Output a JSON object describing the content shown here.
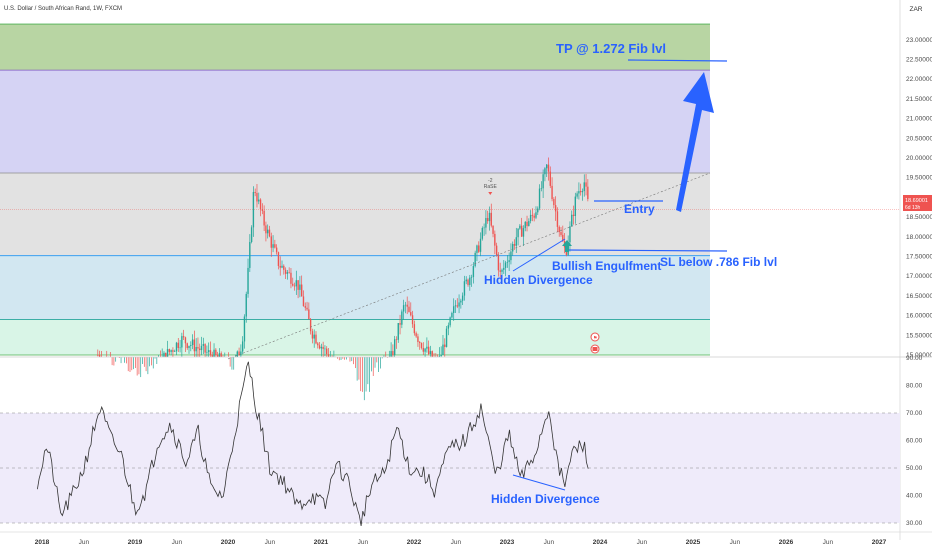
{
  "header": {
    "symbol_title": "U.S. Dollar / South African Rand, 1W, FXCM"
  },
  "currency_label": "ZAR",
  "colors": {
    "up": "#26a69a",
    "down": "#ef5350",
    "annotation": "#2962ff",
    "fib_green": "#b8d5a3",
    "fib_purple": "#d5d3f4",
    "fib_gray": "#e2e2e2",
    "fib_blue": "#d2e7f1",
    "fib_mint": "#d9f5e7",
    "rsi_band": "#efebfa",
    "price_badge": "#ef5350",
    "arrow": "#2962ff"
  },
  "chart_data": [
    {
      "type": "candlestick",
      "title": "U.S. Dollar / South African Rand, 1W, FXCM",
      "ylim": [
        14.75,
        23.4
      ],
      "y_ticks": [
        "15.00000",
        "15.50000",
        "16.00000",
        "16.50000",
        "17.00000",
        "17.50000",
        "18.00000",
        "18.50000",
        "19.00000",
        "19.50000",
        "20.00000",
        "20.50000",
        "21.00000",
        "21.50000",
        "22.00000",
        "22.50000",
        "23.00000"
      ],
      "current_price": {
        "value": "18.69001",
        "countdown": "6d 13h"
      },
      "fib_levels": [
        15.0,
        15.9,
        17.52,
        19.62,
        22.23,
        23.4
      ],
      "anchors": [
        {
          "year": 2018.6,
          "value": 15.0
        },
        {
          "year": 2019.05,
          "value": 14.3
        },
        {
          "year": 2019.5,
          "value": 15.4
        },
        {
          "year": 2019.9,
          "value": 14.9
        },
        {
          "year": 2020.05,
          "value": 14.6
        },
        {
          "year": 2020.15,
          "value": 15.3
        },
        {
          "year": 2020.22,
          "value": 17.2
        },
        {
          "year": 2020.28,
          "value": 19.3
        },
        {
          "year": 2020.38,
          "value": 18.4
        },
        {
          "year": 2020.55,
          "value": 17.3
        },
        {
          "year": 2020.75,
          "value": 16.8
        },
        {
          "year": 2020.9,
          "value": 15.6
        },
        {
          "year": 2021.1,
          "value": 14.9
        },
        {
          "year": 2021.35,
          "value": 14.5
        },
        {
          "year": 2021.45,
          "value": 13.8
        },
        {
          "year": 2021.6,
          "value": 14.6
        },
        {
          "year": 2021.75,
          "value": 14.9
        },
        {
          "year": 2021.9,
          "value": 16.3
        },
        {
          "year": 2022.05,
          "value": 15.4
        },
        {
          "year": 2022.25,
          "value": 14.7
        },
        {
          "year": 2022.45,
          "value": 16.3
        },
        {
          "year": 2022.6,
          "value": 17.0
        },
        {
          "year": 2022.8,
          "value": 18.6
        },
        {
          "year": 2022.93,
          "value": 17.0
        },
        {
          "year": 2023.1,
          "value": 18.0
        },
        {
          "year": 2023.3,
          "value": 18.6
        },
        {
          "year": 2023.43,
          "value": 19.8
        },
        {
          "year": 2023.5,
          "value": 18.9
        },
        {
          "year": 2023.58,
          "value": 18.0
        },
        {
          "year": 2023.63,
          "value": 17.6
        },
        {
          "year": 2023.75,
          "value": 19.1
        },
        {
          "year": 2023.83,
          "value": 19.4
        },
        {
          "year": 2023.88,
          "value": 18.7
        }
      ]
    },
    {
      "type": "line",
      "name": "RSI",
      "ylim": [
        28,
        91
      ],
      "y_ticks": [
        "30.00",
        "40.00",
        "50.00",
        "60.00",
        "70.00",
        "80.00",
        "90.00"
      ],
      "band": [
        30,
        70
      ],
      "anchors": [
        {
          "year": 2017.95,
          "value": 45
        },
        {
          "year": 2018.05,
          "value": 58
        },
        {
          "year": 2018.12,
          "value": 48
        },
        {
          "year": 2018.2,
          "value": 33
        },
        {
          "year": 2018.3,
          "value": 38
        },
        {
          "year": 2018.45,
          "value": 50
        },
        {
          "year": 2018.62,
          "value": 72
        },
        {
          "year": 2018.75,
          "value": 60
        },
        {
          "year": 2018.85,
          "value": 55
        },
        {
          "year": 2019.0,
          "value": 35
        },
        {
          "year": 2019.12,
          "value": 42
        },
        {
          "year": 2019.25,
          "value": 60
        },
        {
          "year": 2019.38,
          "value": 66
        },
        {
          "year": 2019.55,
          "value": 52
        },
        {
          "year": 2019.68,
          "value": 63
        },
        {
          "year": 2019.82,
          "value": 42
        },
        {
          "year": 2019.95,
          "value": 40
        },
        {
          "year": 2020.1,
          "value": 68
        },
        {
          "year": 2020.22,
          "value": 88
        },
        {
          "year": 2020.3,
          "value": 73
        },
        {
          "year": 2020.45,
          "value": 50
        },
        {
          "year": 2020.6,
          "value": 45
        },
        {
          "year": 2020.75,
          "value": 36
        },
        {
          "year": 2020.9,
          "value": 40
        },
        {
          "year": 2021.05,
          "value": 36
        },
        {
          "year": 2021.15,
          "value": 52
        },
        {
          "year": 2021.3,
          "value": 45
        },
        {
          "year": 2021.42,
          "value": 30
        },
        {
          "year": 2021.55,
          "value": 44
        },
        {
          "year": 2021.68,
          "value": 48
        },
        {
          "year": 2021.82,
          "value": 65
        },
        {
          "year": 2021.95,
          "value": 50
        },
        {
          "year": 2022.1,
          "value": 48
        },
        {
          "year": 2022.22,
          "value": 42
        },
        {
          "year": 2022.38,
          "value": 57
        },
        {
          "year": 2022.55,
          "value": 60
        },
        {
          "year": 2022.72,
          "value": 72
        },
        {
          "year": 2022.88,
          "value": 47
        },
        {
          "year": 2023.02,
          "value": 62
        },
        {
          "year": 2023.15,
          "value": 46
        },
        {
          "year": 2023.3,
          "value": 55
        },
        {
          "year": 2023.45,
          "value": 72
        },
        {
          "year": 2023.55,
          "value": 50
        },
        {
          "year": 2023.62,
          "value": 44
        },
        {
          "year": 2023.72,
          "value": 57
        },
        {
          "year": 2023.83,
          "value": 58
        },
        {
          "year": 2023.88,
          "value": 51
        }
      ]
    }
  ],
  "x_axis": {
    "ticks": [
      {
        "label": "2018",
        "year": 2018.0,
        "bold": true
      },
      {
        "label": "Jun",
        "year": 2018.45,
        "bold": false
      },
      {
        "label": "2019",
        "year": 2019.0,
        "bold": true
      },
      {
        "label": "Jun",
        "year": 2019.45,
        "bold": false
      },
      {
        "label": "2020",
        "year": 2020.0,
        "bold": true
      },
      {
        "label": "Jun",
        "year": 2020.45,
        "bold": false
      },
      {
        "label": "2021",
        "year": 2021.0,
        "bold": true
      },
      {
        "label": "Jun",
        "year": 2021.45,
        "bold": false
      },
      {
        "label": "2022",
        "year": 2022.0,
        "bold": true
      },
      {
        "label": "Jun",
        "year": 2022.45,
        "bold": false
      },
      {
        "label": "2023",
        "year": 2023.0,
        "bold": true
      },
      {
        "label": "Jun",
        "year": 2023.45,
        "bold": false
      },
      {
        "label": "2024",
        "year": 2024.0,
        "bold": true
      },
      {
        "label": "Jun",
        "year": 2024.45,
        "bold": false
      },
      {
        "label": "2025",
        "year": 2025.0,
        "bold": true
      },
      {
        "label": "Jun",
        "year": 2025.45,
        "bold": false
      },
      {
        "label": "2026",
        "year": 2026.0,
        "bold": true
      },
      {
        "label": "Jun",
        "year": 2026.45,
        "bold": false
      },
      {
        "label": "2027",
        "year": 2027.0,
        "bold": true
      }
    ]
  },
  "annotations": {
    "tp": "TP @ 1.272 Fib lvl",
    "entry": "Entry",
    "sl": "SL below .786 Fib lvl",
    "bullish_engulfment": "Bullish Engulfment",
    "hidden_divergence_price": "Hidden Divergence",
    "hidden_divergence_rsi": "Hidden Divergence",
    "event_marker": "-2\nRaSE"
  },
  "icons": [
    "flag-icon",
    "calendar-icon"
  ]
}
